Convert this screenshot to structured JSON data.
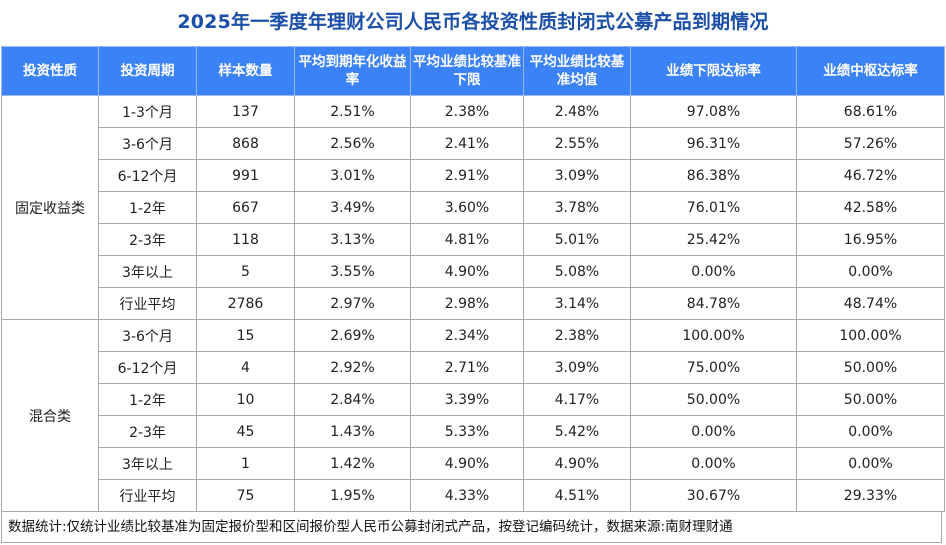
{
  "title": "2025年一季度年理财公司人民币各投资性质封闭式公募产品到期情况",
  "headers": [
    "投资性质",
    "投资周期",
    "样本数量",
    "平均到期年化收益率",
    "平均业绩比较基准下限",
    "平均业绩比较基准均值",
    "业绩下限达标率",
    "业绩中枢达标率"
  ],
  "groups": [
    {
      "name": "固定收益类",
      "rows": [
        [
          "1-3个月",
          "137",
          "2.51%",
          "2.38%",
          "2.48%",
          "97.08%",
          "68.61%"
        ],
        [
          "3-6个月",
          "868",
          "2.56%",
          "2.41%",
          "2.55%",
          "96.31%",
          "57.26%"
        ],
        [
          "6-12个月",
          "991",
          "3.01%",
          "2.91%",
          "3.09%",
          "86.38%",
          "46.72%"
        ],
        [
          "1-2年",
          "667",
          "3.49%",
          "3.60%",
          "3.78%",
          "76.01%",
          "42.58%"
        ],
        [
          "2-3年",
          "118",
          "3.13%",
          "4.81%",
          "5.01%",
          "25.42%",
          "16.95%"
        ],
        [
          "3年以上",
          "5",
          "3.55%",
          "4.90%",
          "5.08%",
          "0.00%",
          "0.00%"
        ],
        [
          "行业平均",
          "2786",
          "2.97%",
          "2.98%",
          "3.14%",
          "84.78%",
          "48.74%"
        ]
      ]
    },
    {
      "name": "混合类",
      "rows": [
        [
          "3-6个月",
          "15",
          "2.69%",
          "2.34%",
          "2.38%",
          "100.00%",
          "100.00%"
        ],
        [
          "6-12个月",
          "4",
          "2.92%",
          "2.71%",
          "3.09%",
          "75.00%",
          "50.00%"
        ],
        [
          "1-2年",
          "10",
          "2.84%",
          "3.39%",
          "4.17%",
          "50.00%",
          "50.00%"
        ],
        [
          "2-3年",
          "45",
          "1.43%",
          "5.33%",
          "5.42%",
          "0.00%",
          "0.00%"
        ],
        [
          "3年以上",
          "1",
          "1.42%",
          "4.90%",
          "4.90%",
          "0.00%",
          "0.00%"
        ],
        [
          "行业平均",
          "75",
          "1.95%",
          "4.33%",
          "4.51%",
          "30.67%",
          "29.33%"
        ]
      ]
    }
  ],
  "footnote": "数据统计:仅统计业绩比较基准为固定报价型和区间报价型人民币公募封闭式产品，按登记编码统计，数据来源:南财理财通",
  "colors": {
    "title": "#1b4fa8",
    "header_bg": "#3b82f6",
    "header_text": "#ffffff",
    "border": "#a9a9a9"
  }
}
